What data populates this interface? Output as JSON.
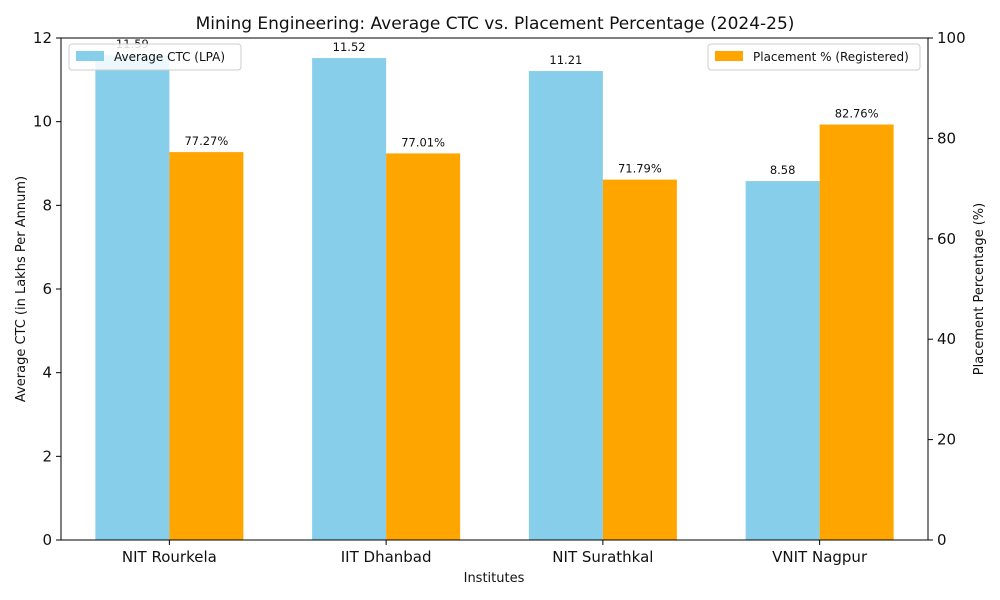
{
  "chart_data": {
    "type": "bar",
    "title": "Mining Engineering: Average CTC vs. Placement Percentage (2024-25)",
    "xlabel": "Institutes",
    "ylabel_left": "Average CTC (in Lakhs Per Annum)",
    "ylabel_right": "Placement Percentage (%)",
    "categories": [
      "NIT Rourkela",
      "IIT Dhanbad",
      "NIT Surathkal",
      "VNIT Nagpur"
    ],
    "ylim_left": [
      0,
      12
    ],
    "ylim_right": [
      0,
      100
    ],
    "yticks_left": [
      "0",
      "2",
      "4",
      "6",
      "8",
      "10",
      "12"
    ],
    "yticks_right": [
      "0",
      "20",
      "40",
      "60",
      "80",
      "100"
    ],
    "grid": false,
    "series": [
      {
        "name": "Average CTC (LPA)",
        "axis": "left",
        "color": "#87CEEB",
        "values": [
          11.59,
          11.52,
          11.21,
          8.58
        ],
        "labels": [
          "11.59",
          "11.52",
          "11.21",
          "8.58"
        ]
      },
      {
        "name": "Placement % (Registered)",
        "axis": "right",
        "color": "#FFA500",
        "values": [
          77.27,
          77.01,
          71.79,
          82.76
        ],
        "labels": [
          "77.27%",
          "77.01%",
          "71.79%",
          "82.76%"
        ]
      }
    ],
    "legend": {
      "left_series_placement": "top-left",
      "right_series_placement": "top-right"
    }
  }
}
